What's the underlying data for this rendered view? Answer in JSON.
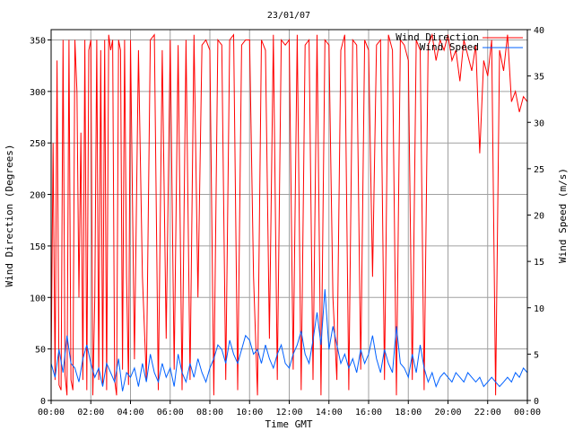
{
  "chart_data": {
    "type": "line",
    "title": "23/01/07",
    "xlabel": "Time GMT",
    "ylabel_left": "Wind Direction (Degrees)",
    "ylabel_right": "Wind Speed (m/s)",
    "x_ticks": [
      "00:00",
      "02:00",
      "04:00",
      "06:00",
      "08:00",
      "10:00",
      "12:00",
      "14:00",
      "16:00",
      "18:00",
      "20:00",
      "22:00",
      "00:00"
    ],
    "x_range_hours": [
      0,
      24
    ],
    "y_left_ticks": [
      0,
      50,
      100,
      150,
      200,
      250,
      300,
      350
    ],
    "y_left_range": [
      0,
      360
    ],
    "y_right_ticks": [
      0,
      5,
      10,
      15,
      20,
      25,
      30,
      35,
      40
    ],
    "y_right_range": [
      0,
      40
    ],
    "grid": true,
    "legend_position": "top-right",
    "series": [
      {
        "name": "Wind Direction",
        "axis": "left",
        "color": "#ff0000",
        "x_hours": [
          0.0,
          0.1,
          0.2,
          0.3,
          0.4,
          0.5,
          0.6,
          0.7,
          0.8,
          0.9,
          1.0,
          1.1,
          1.2,
          1.3,
          1.4,
          1.5,
          1.6,
          1.7,
          1.8,
          1.9,
          2.0,
          2.1,
          2.2,
          2.3,
          2.4,
          2.5,
          2.6,
          2.7,
          2.8,
          2.9,
          3.0,
          3.1,
          3.2,
          3.3,
          3.4,
          3.5,
          3.6,
          3.7,
          3.8,
          3.9,
          4.0,
          4.2,
          4.4,
          4.6,
          4.8,
          5.0,
          5.2,
          5.4,
          5.6,
          5.8,
          6.0,
          6.2,
          6.4,
          6.6,
          6.8,
          7.0,
          7.2,
          7.4,
          7.6,
          7.8,
          8.0,
          8.2,
          8.4,
          8.6,
          8.8,
          9.0,
          9.2,
          9.4,
          9.6,
          9.8,
          10.0,
          10.2,
          10.4,
          10.6,
          10.8,
          11.0,
          11.2,
          11.4,
          11.6,
          11.8,
          12.0,
          12.2,
          12.4,
          12.6,
          12.8,
          13.0,
          13.2,
          13.4,
          13.6,
          13.8,
          14.0,
          14.2,
          14.4,
          14.6,
          14.8,
          15.0,
          15.2,
          15.4,
          15.6,
          15.8,
          16.0,
          16.2,
          16.4,
          16.6,
          16.8,
          17.0,
          17.2,
          17.4,
          17.6,
          17.8,
          18.0,
          18.2,
          18.4,
          18.6,
          18.8,
          19.0,
          19.2,
          19.4,
          19.6,
          19.8,
          20.0,
          20.2,
          20.4,
          20.6,
          20.8,
          21.0,
          21.2,
          21.4,
          21.6,
          21.8,
          22.0,
          22.2,
          22.4,
          22.6,
          22.8,
          23.0,
          23.2,
          23.4,
          23.6,
          23.8,
          24.0
        ],
        "values": [
          30,
          250,
          20,
          330,
          15,
          10,
          350,
          25,
          5,
          350,
          20,
          10,
          350,
          300,
          100,
          260,
          20,
          350,
          10,
          340,
          350,
          5,
          100,
          350,
          20,
          340,
          15,
          350,
          10,
          355,
          340,
          350,
          20,
          5,
          350,
          340,
          30,
          350,
          120,
          15,
          350,
          40,
          340,
          120,
          20,
          350,
          355,
          10,
          340,
          60,
          350,
          30,
          345,
          10,
          350,
          20,
          355,
          100,
          345,
          350,
          340,
          5,
          350,
          345,
          20,
          350,
          355,
          10,
          345,
          350,
          350,
          120,
          5,
          350,
          340,
          60,
          355,
          20,
          350,
          345,
          350,
          30,
          355,
          10,
          345,
          350,
          20,
          355,
          5,
          350,
          345,
          100,
          20,
          340,
          355,
          10,
          350,
          345,
          30,
          350,
          340,
          120,
          345,
          350,
          20,
          355,
          340,
          5,
          350,
          345,
          330,
          20,
          350,
          340,
          10,
          345,
          355,
          330,
          350,
          340,
          355,
          330,
          340,
          310,
          350,
          335,
          320,
          345,
          240,
          330,
          315,
          350,
          5,
          340,
          320,
          355,
          290,
          300,
          280,
          295,
          290
        ]
      },
      {
        "name": "Wind Speed",
        "axis": "right",
        "color": "#0060ff",
        "x_hours": [
          0.0,
          0.2,
          0.4,
          0.6,
          0.8,
          1.0,
          1.2,
          1.4,
          1.6,
          1.8,
          2.0,
          2.2,
          2.4,
          2.6,
          2.8,
          3.0,
          3.2,
          3.4,
          3.6,
          3.8,
          4.0,
          4.2,
          4.4,
          4.6,
          4.8,
          5.0,
          5.2,
          5.4,
          5.6,
          5.8,
          6.0,
          6.2,
          6.4,
          6.6,
          6.8,
          7.0,
          7.2,
          7.4,
          7.6,
          7.8,
          8.0,
          8.2,
          8.4,
          8.6,
          8.8,
          9.0,
          9.2,
          9.4,
          9.6,
          9.8,
          10.0,
          10.2,
          10.4,
          10.6,
          10.8,
          11.0,
          11.2,
          11.4,
          11.6,
          11.8,
          12.0,
          12.2,
          12.4,
          12.6,
          12.8,
          13.0,
          13.2,
          13.4,
          13.6,
          13.8,
          14.0,
          14.2,
          14.4,
          14.6,
          14.8,
          15.0,
          15.2,
          15.4,
          15.6,
          15.8,
          16.0,
          16.2,
          16.4,
          16.6,
          16.8,
          17.0,
          17.2,
          17.4,
          17.6,
          17.8,
          18.0,
          18.2,
          18.4,
          18.6,
          18.8,
          19.0,
          19.2,
          19.4,
          19.6,
          19.8,
          20.0,
          20.2,
          20.4,
          20.6,
          20.8,
          21.0,
          21.2,
          21.4,
          21.6,
          21.8,
          22.0,
          22.2,
          22.4,
          22.6,
          22.8,
          23.0,
          23.2,
          23.4,
          23.6,
          23.8,
          24.0
        ],
        "values": [
          4.0,
          2.5,
          5.5,
          3.0,
          7.0,
          4.0,
          3.5,
          2.0,
          4.5,
          6.0,
          4.0,
          2.5,
          3.5,
          1.5,
          4.0,
          3.0,
          2.0,
          4.5,
          1.0,
          3.0,
          2.5,
          3.5,
          1.5,
          4.0,
          2.0,
          5.0,
          3.0,
          2.0,
          4.0,
          2.5,
          3.5,
          1.5,
          5.0,
          3.0,
          2.0,
          4.0,
          2.5,
          4.5,
          3.0,
          2.0,
          3.5,
          4.5,
          6.0,
          5.5,
          4.0,
          6.5,
          5.0,
          4.0,
          5.5,
          7.0,
          6.5,
          5.0,
          5.5,
          4.0,
          6.0,
          4.5,
          3.5,
          5.0,
          6.0,
          4.0,
          3.5,
          5.0,
          6.0,
          7.5,
          5.0,
          4.0,
          6.5,
          9.5,
          6.0,
          12.0,
          5.5,
          8.0,
          6.0,
          4.0,
          5.0,
          3.5,
          4.5,
          3.0,
          5.5,
          4.0,
          5.0,
          7.0,
          4.5,
          3.0,
          5.5,
          4.0,
          3.0,
          8.0,
          4.0,
          3.5,
          2.5,
          5.0,
          3.0,
          6.0,
          3.5,
          2.0,
          3.0,
          1.5,
          2.5,
          3.0,
          2.5,
          2.0,
          3.0,
          2.5,
          2.0,
          3.0,
          2.5,
          2.0,
          2.5,
          1.5,
          2.0,
          2.5,
          2.0,
          1.5,
          2.0,
          2.5,
          2.0,
          3.0,
          2.5,
          3.5,
          3.0
        ]
      }
    ]
  }
}
